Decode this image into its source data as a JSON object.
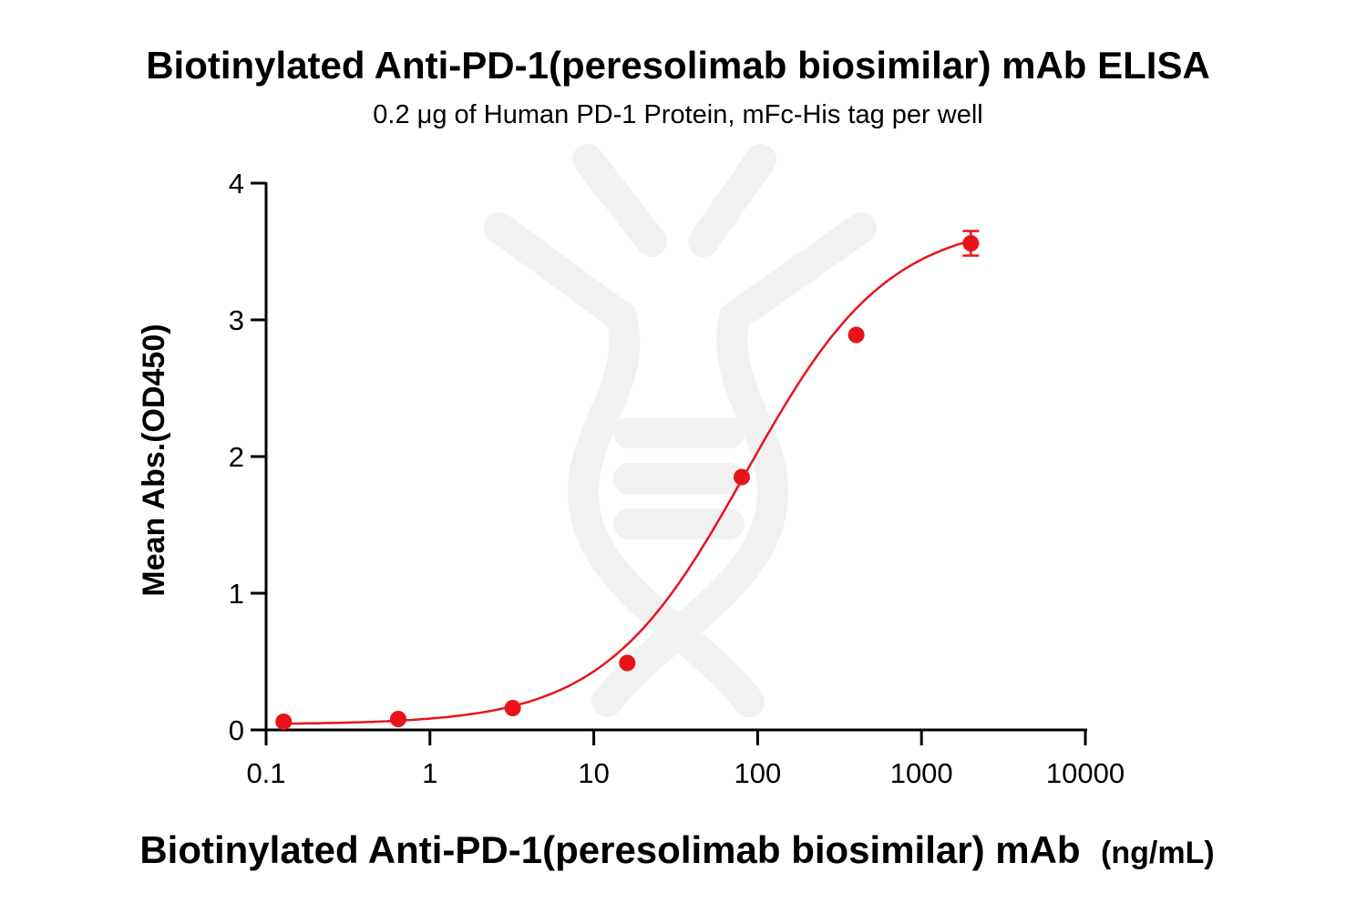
{
  "chart_data": {
    "type": "scatter",
    "title": "Biotinylated Anti-PD-1(peresolimab biosimilar) mAb ELISA",
    "subtitle": "0.2 μg of Human PD-1 Protein, mFc-His tag per well",
    "xlabel": "Biotinylated Anti-PD-1(peresolimab biosimilar) mAb",
    "xlabel_unit": "(ng/mL)",
    "ylabel": "Mean Abs.(OD450)",
    "x_scale": "log",
    "xlim": [
      0.1,
      10000
    ],
    "ylim": [
      0,
      4
    ],
    "x_ticks": [
      0.1,
      1,
      10,
      100,
      1000,
      10000
    ],
    "x_tick_labels": [
      "0.1",
      "1",
      "10",
      "100",
      "1000",
      "10000"
    ],
    "y_ticks": [
      0,
      1,
      2,
      3,
      4
    ],
    "y_tick_labels": [
      "0",
      "1",
      "2",
      "3",
      "4"
    ],
    "grid": false,
    "color": "#e8141b",
    "series": [
      {
        "points": [
          {
            "x": 0.128,
            "y": 0.06,
            "err": 0.0
          },
          {
            "x": 0.64,
            "y": 0.08,
            "err": 0.0
          },
          {
            "x": 3.2,
            "y": 0.16,
            "err": 0.0
          },
          {
            "x": 16,
            "y": 0.49,
            "err": 0.0
          },
          {
            "x": 80,
            "y": 1.85,
            "err": 0.0
          },
          {
            "x": 400,
            "y": 2.89,
            "err": 0.0
          },
          {
            "x": 2000,
            "y": 3.56,
            "err": 0.09
          }
        ],
        "fit": {
          "model": "4PL",
          "bottom": 0.04,
          "top": 3.73,
          "ec50": 85,
          "hill": 1.0
        }
      }
    ]
  }
}
